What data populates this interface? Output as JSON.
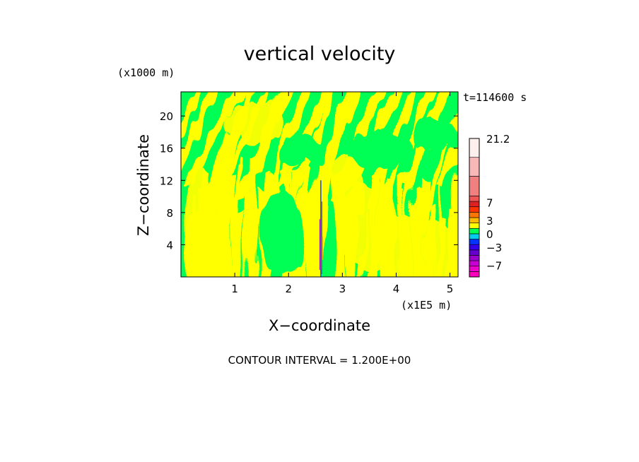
{
  "chart_data": {
    "type": "heatmap",
    "title": "vertical velocity",
    "xlabel": "X−coordinate",
    "ylabel": "Z−coordinate",
    "x_unit": "(x1E5 m)",
    "y_unit": "(x1000 m)",
    "time_label": "t=114600 s",
    "contour_note": "CONTOUR INTERVAL = 1.200E+00",
    "xlim": [
      0,
      5.15
    ],
    "ylim": [
      0,
      23
    ],
    "x_ticks": [
      1,
      2,
      3,
      4,
      5
    ],
    "y_ticks": [
      4,
      8,
      12,
      16,
      20
    ],
    "colorbar": {
      "range": [
        -9.6,
        21.2
      ],
      "tick_values": [
        21.2,
        7,
        3,
        0,
        -3,
        -7
      ],
      "tick_labels": [
        "21.2",
        "7",
        "3",
        "0",
        "−3",
        "−7"
      ],
      "bands": [
        {
          "from": -9.6,
          "to": -8.4,
          "color": "#ff00bb"
        },
        {
          "from": -8.4,
          "to": -7.2,
          "color": "#ee00cc"
        },
        {
          "from": -7.2,
          "to": -6.0,
          "color": "#c800d2"
        },
        {
          "from": -6.0,
          "to": -4.8,
          "color": "#9900cc"
        },
        {
          "from": -4.8,
          "to": -3.6,
          "color": "#6600cc"
        },
        {
          "from": -3.6,
          "to": -2.4,
          "color": "#3300ee"
        },
        {
          "from": -2.4,
          "to": -1.2,
          "color": "#0033ff"
        },
        {
          "from": -1.2,
          "to": 0.0,
          "color": "#00ccee"
        },
        {
          "from": 0.0,
          "to": 1.2,
          "color": "#00ff55"
        },
        {
          "from": 1.2,
          "to": 2.4,
          "color": "#ffff00"
        },
        {
          "from": 2.4,
          "to": 3.6,
          "color": "#ffbb00"
        },
        {
          "from": 3.6,
          "to": 4.8,
          "color": "#ff7700"
        },
        {
          "from": 4.8,
          "to": 6.0,
          "color": "#ff3300"
        },
        {
          "from": 6.0,
          "to": 7.2,
          "color": "#dd2222"
        },
        {
          "from": 7.2,
          "to": 8.4,
          "color": "#ee5555"
        },
        {
          "from": 8.4,
          "to": 12.8,
          "color": "#f08080"
        },
        {
          "from": 12.8,
          "to": 17.0,
          "color": "#f8b8b8"
        },
        {
          "from": 17.0,
          "to": 21.2,
          "color": "#fff0f0"
        }
      ]
    },
    "field_colors": {
      "low": "#00ff55",
      "high": "#ffff00"
    },
    "field_description": "Alternating bands of 0 to 1.2 (green) and 1.2 to 2.4 (yellow); tilted wave bands in the upper layer, vertical streaks below; narrow strong updraft/downdraft column near x = 2.6.",
    "spike": {
      "x": 2.6,
      "z_top": 12.0
    }
  }
}
